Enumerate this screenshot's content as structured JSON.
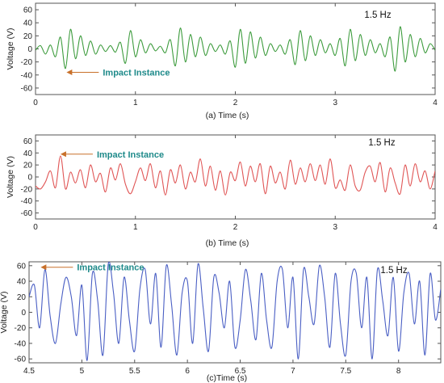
{
  "chart_data": [
    {
      "type": "line",
      "panel_label": "(a) Time (s)",
      "ylabel": "Voltage (V)",
      "xlim": [
        0,
        4
      ],
      "ylim": [
        -70,
        70
      ],
      "xticks": [
        "0",
        "1",
        "2",
        "3",
        "4"
      ],
      "yticks": [
        "60",
        "40",
        "20",
        "0",
        "-20",
        "-40",
        "-60"
      ],
      "xtick_values": [
        0,
        1,
        2,
        3,
        4
      ],
      "ytick_values": [
        60,
        40,
        20,
        0,
        -20,
        -40,
        -60
      ],
      "frequency_label": "1.5 Hz",
      "annotation": {
        "text": "Impact Instance",
        "x": 0.31,
        "y": -36
      },
      "series": [
        {
          "color": "#3c9b3c",
          "x": [
            0,
            0.05,
            0.1,
            0.15,
            0.2,
            0.25,
            0.3,
            0.35,
            0.4,
            0.45,
            0.5,
            0.55,
            0.6,
            0.65,
            0.7,
            0.75,
            0.8,
            0.85,
            0.9,
            0.95,
            1.0,
            1.05,
            1.1,
            1.15,
            1.2,
            1.25,
            1.3,
            1.35,
            1.4,
            1.45,
            1.5,
            1.55,
            1.6,
            1.65,
            1.7,
            1.75,
            1.8,
            1.85,
            1.9,
            1.95,
            2.0,
            2.05,
            2.1,
            2.15,
            2.2,
            2.25,
            2.3,
            2.35,
            2.4,
            2.45,
            2.5,
            2.55,
            2.6,
            2.65,
            2.7,
            2.75,
            2.8,
            2.85,
            2.9,
            2.95,
            3.0,
            3.05,
            3.1,
            3.15,
            3.2,
            3.25,
            3.3,
            3.35,
            3.4,
            3.45,
            3.5,
            3.55,
            3.6,
            3.65,
            3.7,
            3.75,
            3.8,
            3.85,
            3.9,
            3.95,
            4.0
          ],
          "y": [
            -2,
            5,
            -8,
            6,
            -12,
            18,
            -30,
            30,
            -15,
            20,
            -10,
            12,
            -8,
            6,
            -4,
            5,
            -5,
            10,
            -22,
            28,
            -12,
            14,
            -6,
            8,
            -3,
            4,
            -6,
            14,
            -26,
            32,
            -20,
            22,
            -12,
            18,
            -10,
            8,
            -4,
            6,
            -8,
            12,
            -28,
            30,
            -22,
            26,
            -14,
            18,
            -10,
            8,
            -4,
            6,
            -8,
            14,
            -24,
            28,
            -18,
            20,
            -10,
            14,
            -6,
            8,
            -10,
            16,
            -26,
            30,
            -18,
            22,
            -10,
            14,
            -6,
            8,
            -12,
            18,
            -34,
            34,
            -20,
            22,
            -12,
            16,
            -6,
            8,
            -2
          ]
        }
      ]
    },
    {
      "type": "line",
      "panel_label": "(b) Time (s)",
      "ylabel": "Voltage (V)",
      "xlim": [
        0,
        4
      ],
      "ylim": [
        -70,
        70
      ],
      "xticks": [
        "0",
        "1",
        "2",
        "3",
        "4"
      ],
      "yticks": [
        "60",
        "40",
        "20",
        "0",
        "-20",
        "-40",
        "-60"
      ],
      "xtick_values": [
        0,
        1,
        2,
        3,
        4
      ],
      "ytick_values": [
        60,
        40,
        20,
        0,
        -20,
        -40,
        -60
      ],
      "frequency_label": "1.5 Hz",
      "annotation": {
        "text": "Impact Instance",
        "x": 0.25,
        "y": 38
      },
      "series": [
        {
          "color": "#e05555",
          "x": [
            0,
            0.05,
            0.1,
            0.15,
            0.2,
            0.25,
            0.3,
            0.35,
            0.4,
            0.45,
            0.5,
            0.55,
            0.6,
            0.65,
            0.7,
            0.75,
            0.8,
            0.85,
            0.9,
            0.95,
            1.0,
            1.05,
            1.1,
            1.15,
            1.2,
            1.25,
            1.3,
            1.35,
            1.4,
            1.45,
            1.5,
            1.55,
            1.6,
            1.65,
            1.7,
            1.75,
            1.8,
            1.85,
            1.9,
            1.95,
            2.0,
            2.05,
            2.1,
            2.15,
            2.2,
            2.25,
            2.3,
            2.35,
            2.4,
            2.45,
            2.5,
            2.55,
            2.6,
            2.65,
            2.7,
            2.75,
            2.8,
            2.85,
            2.9,
            2.95,
            3.0,
            3.05,
            3.1,
            3.15,
            3.2,
            3.25,
            3.3,
            3.35,
            3.4,
            3.45,
            3.5,
            3.55,
            3.6,
            3.65,
            3.7,
            3.75,
            3.8,
            3.85,
            3.9,
            3.95,
            4.0
          ],
          "y": [
            -15,
            -20,
            -8,
            10,
            -18,
            35,
            -20,
            8,
            -10,
            12,
            -18,
            20,
            -8,
            6,
            -25,
            15,
            -5,
            22,
            -12,
            -28,
            -8,
            15,
            -6,
            22,
            -18,
            10,
            -30,
            12,
            -10,
            20,
            -20,
            8,
            -8,
            30,
            -15,
            18,
            -22,
            10,
            -30,
            8,
            -6,
            25,
            -15,
            18,
            -8,
            22,
            -28,
            18,
            -10,
            8,
            -20,
            28,
            -12,
            15,
            -8,
            22,
            -6,
            20,
            -12,
            30,
            -18,
            -5,
            -22,
            20,
            -15,
            -22,
            8,
            18,
            -8,
            24,
            -25,
            15,
            -10,
            -28,
            20,
            -15,
            22,
            -8,
            10,
            -20,
            10
          ]
        }
      ]
    },
    {
      "type": "line",
      "panel_label": "(c)Time (s)",
      "ylabel": "Voltage (V)",
      "xlim": [
        4.5,
        8.4
      ],
      "ylim": [
        -65,
        65
      ],
      "xticks": [
        "4.5",
        "5",
        "5.5",
        "6",
        "6.5",
        "7",
        "7.5",
        "8"
      ],
      "yticks": [
        "60",
        "40",
        "20",
        "0",
        "-20",
        "-40",
        "-60"
      ],
      "xtick_values": [
        4.5,
        5,
        5.5,
        6,
        6.5,
        7,
        7.5,
        8
      ],
      "ytick_values": [
        60,
        40,
        20,
        0,
        -20,
        -40,
        -60
      ],
      "frequency_label": "1.5 Hz",
      "annotation": {
        "text": "Impact Instance",
        "x": 4.61,
        "y": 58
      },
      "series": [
        {
          "color": "#4a5fc4",
          "x": [
            4.5,
            4.55,
            4.6,
            4.65,
            4.7,
            4.75,
            4.8,
            4.85,
            4.9,
            4.95,
            5.0,
            5.05,
            5.1,
            5.15,
            5.2,
            5.25,
            5.3,
            5.35,
            5.4,
            5.45,
            5.5,
            5.55,
            5.6,
            5.65,
            5.7,
            5.75,
            5.8,
            5.85,
            5.9,
            5.95,
            6.0,
            6.05,
            6.1,
            6.15,
            6.2,
            6.25,
            6.3,
            6.35,
            6.4,
            6.45,
            6.5,
            6.55,
            6.6,
            6.65,
            6.7,
            6.75,
            6.8,
            6.85,
            6.9,
            6.95,
            7.0,
            7.05,
            7.1,
            7.15,
            7.2,
            7.25,
            7.3,
            7.35,
            7.4,
            7.45,
            7.5,
            7.55,
            7.6,
            7.65,
            7.7,
            7.75,
            7.8,
            7.85,
            7.9,
            7.95,
            8.0,
            8.05,
            8.1,
            8.15,
            8.2,
            8.25,
            8.3,
            8.35,
            8.4
          ],
          "y": [
            20,
            35,
            -20,
            55,
            -5,
            -40,
            10,
            45,
            20,
            -30,
            35,
            -62,
            50,
            15,
            -55,
            62,
            25,
            -40,
            45,
            -10,
            -50,
            30,
            55,
            -15,
            50,
            -45,
            60,
            10,
            -55,
            25,
            40,
            -40,
            62,
            5,
            -50,
            45,
            25,
            -20,
            40,
            -45,
            -10,
            55,
            15,
            -35,
            50,
            -10,
            -45,
            40,
            55,
            -20,
            45,
            -60,
            55,
            20,
            -15,
            60,
            20,
            -45,
            50,
            -15,
            -55,
            40,
            50,
            -20,
            45,
            -60,
            55,
            15,
            -30,
            45,
            -50,
            25,
            50,
            -15,
            40,
            -55,
            50,
            -10,
            30
          ]
        }
      ]
    }
  ]
}
